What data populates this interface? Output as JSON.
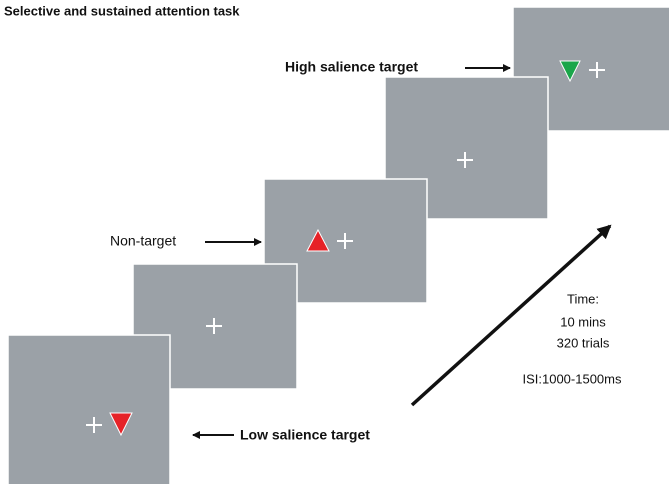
{
  "title": "Selective and sustained attention task",
  "labels": {
    "high": "High salience target",
    "non": "Non-target",
    "low": "Low salience target"
  },
  "time": {
    "heading": "Time:",
    "duration": "10 mins",
    "trials": "320 trials",
    "isi": "ISI:1000-1500ms"
  }
}
